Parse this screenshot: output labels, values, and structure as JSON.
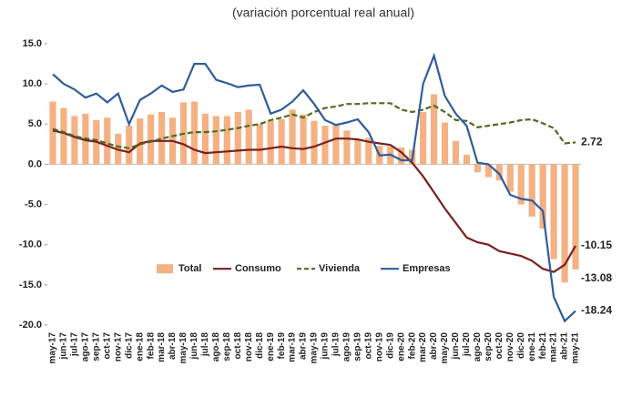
{
  "chart_data": {
    "type": "bar-line",
    "subtitle": "(variación porcentual real anual)",
    "categories": [
      "may-17",
      "jun-17",
      "jul-17",
      "ago-17",
      "sep-17",
      "oct-17",
      "nov-17",
      "dic-17",
      "ene-18",
      "feb-18",
      "mar-18",
      "abr-18",
      "may-18",
      "jun-18",
      "jul-18",
      "ago-18",
      "sep-18",
      "oct-18",
      "nov-18",
      "dic-18",
      "ene-19",
      "feb-19",
      "mar-19",
      "abr-19",
      "may-19",
      "jun-19",
      "jul-19",
      "ago-19",
      "sep-19",
      "oct-19",
      "nov-19",
      "dic-19",
      "ene-20",
      "feb-20",
      "mar-20",
      "abr-20",
      "may-20",
      "jun-20",
      "jul-20",
      "ago-20",
      "sep-20",
      "oct-20",
      "nov-20",
      "dic-20",
      "ene-21",
      "feb-21",
      "mar-21",
      "abr-21",
      "may-21"
    ],
    "series": [
      {
        "name": "Total",
        "kind": "bar",
        "color": "#f4b183",
        "values": [
          7.8,
          7.0,
          6.0,
          6.3,
          5.5,
          5.8,
          3.8,
          4.8,
          5.7,
          6.2,
          6.5,
          5.8,
          7.7,
          7.8,
          6.3,
          6.0,
          6.0,
          6.5,
          6.8,
          5.0,
          5.4,
          5.6,
          6.8,
          6.2,
          5.4,
          4.8,
          5.0,
          4.2,
          3.1,
          3.3,
          2.3,
          2.2,
          2.1,
          1.8,
          6.5,
          8.7,
          5.2,
          2.9,
          1.2,
          -1.0,
          -1.6,
          -2.0,
          -3.4,
          -5.0,
          -6.5,
          -8.0,
          -11.8,
          -14.7,
          -13.08
        ]
      },
      {
        "name": "Consumo",
        "kind": "line",
        "style": "solid",
        "color": "#7b1f1f",
        "values": [
          4.2,
          3.9,
          3.4,
          3.0,
          2.8,
          2.3,
          1.8,
          1.5,
          2.6,
          2.9,
          2.9,
          2.9,
          2.5,
          1.8,
          1.4,
          1.5,
          1.6,
          1.7,
          1.8,
          1.8,
          2.0,
          2.2,
          2.0,
          1.9,
          2.2,
          2.7,
          3.2,
          3.2,
          3.1,
          2.8,
          2.6,
          2.4,
          1.5,
          0.2,
          -1.5,
          -3.5,
          -5.5,
          -7.3,
          -9.1,
          -9.7,
          -10.0,
          -10.8,
          -11.1,
          -11.4,
          -12.0,
          -13.0,
          -13.4,
          -12.5,
          -10.15
        ]
      },
      {
        "name": "Vivienda",
        "kind": "line",
        "style": "dashed",
        "color": "#4e6b22",
        "values": [
          4.4,
          4.0,
          3.5,
          3.2,
          3.0,
          2.6,
          2.2,
          2.0,
          2.5,
          2.8,
          3.2,
          3.5,
          3.8,
          4.0,
          4.0,
          4.1,
          4.3,
          4.5,
          4.8,
          5.0,
          5.5,
          5.8,
          6.2,
          5.8,
          6.5,
          7.0,
          7.2,
          7.5,
          7.5,
          7.6,
          7.6,
          7.6,
          6.8,
          6.5,
          6.8,
          7.3,
          6.5,
          5.5,
          5.4,
          4.6,
          4.8,
          5.0,
          5.2,
          5.5,
          5.6,
          5.1,
          4.5,
          2.6,
          2.72
        ]
      },
      {
        "name": "Empresas",
        "kind": "line",
        "style": "solid",
        "color": "#2e5d9a",
        "values": [
          11.2,
          10.0,
          9.3,
          8.3,
          8.8,
          7.7,
          8.8,
          5.0,
          8.0,
          8.8,
          9.8,
          9.0,
          9.3,
          12.5,
          12.5,
          10.5,
          10.1,
          9.6,
          9.8,
          9.9,
          6.3,
          6.8,
          7.8,
          9.2,
          7.5,
          5.5,
          4.9,
          5.2,
          5.6,
          4.0,
          1.1,
          1.2,
          0.5,
          0.5,
          10.0,
          13.5,
          8.5,
          6.3,
          4.8,
          0.2,
          0.0,
          -1.2,
          -3.8,
          -4.3,
          -4.5,
          -5.8,
          -16.5,
          -19.5,
          -18.24
        ]
      }
    ],
    "label_last": true,
    "ylim": [
      -20,
      15
    ],
    "yticks": [
      {
        "value": 15,
        "label": "15.0"
      },
      {
        "value": 10,
        "label": "10.0"
      },
      {
        "value": 5,
        "label": "5.0"
      },
      {
        "value": 0,
        "label": "0.0"
      },
      {
        "value": -5,
        "label": "-5.0"
      },
      {
        "value": -10,
        "label": "-10.0"
      },
      {
        "value": -15,
        "label": "-15.0"
      },
      {
        "value": -20,
        "label": "-20.0"
      }
    ],
    "grid": false,
    "legend": "lower-center"
  }
}
